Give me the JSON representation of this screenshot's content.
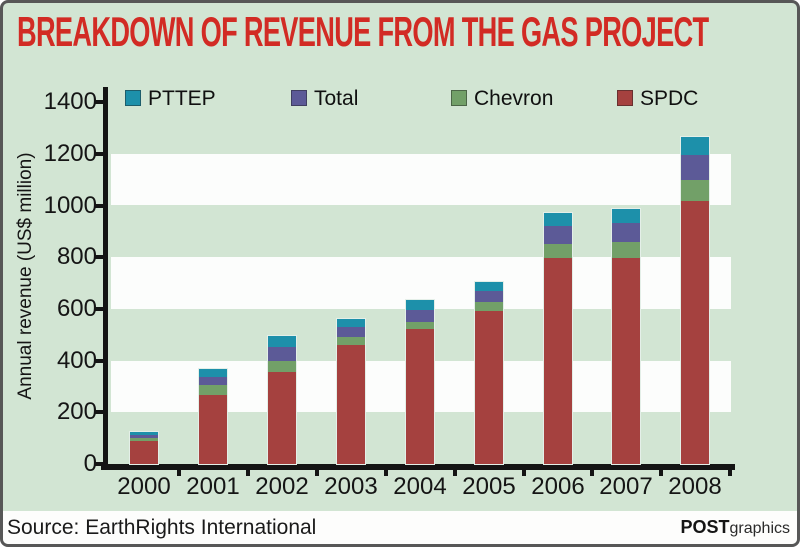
{
  "title": "BREAKDOWN OF REVENUE FROM THE GAS PROJECT",
  "footer": {
    "source": "Source: EarthRights International",
    "brand_bold": "POST",
    "brand_light": "graphics"
  },
  "colors": {
    "background_green": "#d2e5d3",
    "stripe_white": "#fcfdfc",
    "title_red": "#d22b24",
    "axis_black": "#141414"
  },
  "chart_data": {
    "type": "bar",
    "stacked": true,
    "title": "BREAKDOWN OF REVENUE FROM THE GAS PROJECT",
    "ylabel": "Annual revenue (US$ million)",
    "xlabel": "",
    "ylim": [
      0,
      1400
    ],
    "yticks": [
      0,
      200,
      400,
      600,
      800,
      1000,
      1200,
      1400
    ],
    "grid": "alternating horizontal white bands every 200 units (200-400, 600-800, 1000-1200)",
    "legend_position": "top inside plot, horizontal",
    "legend_order": [
      "PTTEP",
      "Total",
      "Chevron",
      "SPDC"
    ],
    "categories": [
      "2000",
      "2001",
      "2002",
      "2003",
      "2004",
      "2005",
      "2006",
      "2007",
      "2008"
    ],
    "series": [
      {
        "name": "SPDC",
        "color": "#a5413f",
        "values": [
          90,
          270,
          358,
          462,
          525,
          594,
          800,
          800,
          1020
        ]
      },
      {
        "name": "Chevron",
        "color": "#72a068",
        "values": [
          12,
          38,
          42,
          34,
          27,
          36,
          56,
          64,
          82
        ]
      },
      {
        "name": "Total",
        "color": "#5c5a97",
        "values": [
          12,
          33,
          56,
          39,
          48,
          41,
          70,
          72,
          96
        ]
      },
      {
        "name": "PTTEP",
        "color": "#1d90aa",
        "values": [
          14,
          30,
          44,
          31,
          40,
          36,
          50,
          56,
          70
        ]
      }
    ],
    "totals": [
      128,
      371,
      500,
      566,
      640,
      707,
      976,
      992,
      1268
    ]
  }
}
